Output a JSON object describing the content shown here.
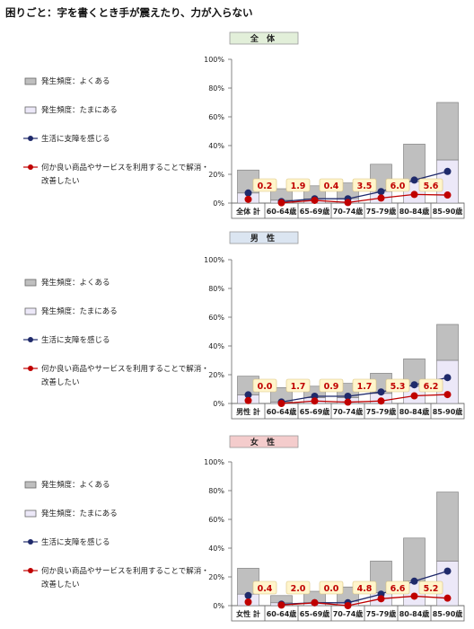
{
  "page_title": "困りごと：字を書くとき手が震えたり、力が入らない",
  "legend": [
    {
      "label": "発生頻度：よくある",
      "kind": "box",
      "color": "#bfbfbf"
    },
    {
      "label": "発生頻度：たまにある",
      "kind": "box",
      "color": "#ece8f8"
    },
    {
      "label": "生活に支障を感じる",
      "kind": "line",
      "color": "#1f2a6b"
    },
    {
      "label": "何か良い商品やサービスを利用することで解消・改善したい",
      "lines": [
        "何か良い商品やサービスを利用することで解消・",
        "改善したい"
      ],
      "kind": "line",
      "color": "#c00000"
    }
  ],
  "colors": {
    "often": "#bfbfbf",
    "sometimes": "#ece8f8",
    "hindrance": "#1f2a6b",
    "want_solution": "#c00000",
    "label_box": "#fff5cc",
    "title_all": "#e2efd9",
    "title_male": "#dbe5f1",
    "title_female": "#f4cccc"
  },
  "chart_data": [
    {
      "type": "bar",
      "title": "全 体",
      "title_color": "#e2efd9",
      "categories": [
        "全体 計",
        "60-64歳",
        "65-69歳",
        "70-74歳",
        "75-79歳",
        "80-84歳",
        "85-90歳"
      ],
      "ylim": [
        0,
        100
      ],
      "yticks": [
        "0%",
        "20%",
        "40%",
        "60%",
        "80%",
        "100%"
      ],
      "series": [
        {
          "name": "発生頻度：よくある",
          "stack": true,
          "values": [
            7,
            2,
            3,
            3,
            8,
            15,
            30
          ]
        },
        {
          "name": "発生頻度：たまにある",
          "stack": true,
          "values": [
            16,
            8,
            9,
            11,
            19,
            26,
            40
          ]
        },
        {
          "name": "生活に支障を感じる",
          "type": "line",
          "values": [
            7,
            1,
            3,
            3,
            8,
            16,
            22
          ]
        },
        {
          "name": "何か良い商品やサービスを利用することで解消・改善したい",
          "type": "line",
          "values": [
            2.6,
            0.2,
            1.9,
            0.4,
            3.5,
            6.0,
            5.6
          ]
        }
      ],
      "data_labels": [
        "",
        "0.2",
        "1.9",
        "0.4",
        "3.5",
        "6.0",
        "5.6"
      ],
      "ylabel": "",
      "xlabel": "",
      "grid": false,
      "legend": "left"
    },
    {
      "type": "bar",
      "title": "男 性",
      "title_color": "#dbe5f1",
      "categories": [
        "男性 計",
        "60-64歳",
        "65-69歳",
        "70-74歳",
        "75-79歳",
        "80-84歳",
        "85-90歳"
      ],
      "ylim": [
        0,
        100
      ],
      "yticks": [
        "0%",
        "20%",
        "40%",
        "60%",
        "80%",
        "100%"
      ],
      "series": [
        {
          "name": "発生頻度：よくある",
          "stack": true,
          "values": [
            6,
            1,
            4,
            4,
            7,
            12,
            30
          ]
        },
        {
          "name": "発生頻度：たまにある",
          "stack": true,
          "values": [
            13,
            10,
            8,
            10,
            14,
            19,
            25
          ]
        },
        {
          "name": "生活に支障を感じる",
          "type": "line",
          "values": [
            6,
            1,
            5,
            5,
            8,
            13,
            18
          ]
        },
        {
          "name": "何か良い商品やサービスを利用することで解消・改善したい",
          "type": "line",
          "values": [
            2,
            0.0,
            1.7,
            0.9,
            1.7,
            5.3,
            6.2
          ]
        }
      ],
      "data_labels": [
        "",
        "0.0",
        "1.7",
        "0.9",
        "1.7",
        "5.3",
        "6.2"
      ],
      "ylabel": "",
      "xlabel": "",
      "grid": false,
      "legend": "left"
    },
    {
      "type": "bar",
      "title": "女 性",
      "title_color": "#f4cccc",
      "categories": [
        "女性 計",
        "60-64歳",
        "65-69歳",
        "70-74歳",
        "75-79歳",
        "80-84歳",
        "85-90歳"
      ],
      "ylim": [
        0,
        100
      ],
      "yticks": [
        "0%",
        "20%",
        "40%",
        "60%",
        "80%",
        "100%"
      ],
      "series": [
        {
          "name": "発生頻度：よくある",
          "stack": true,
          "values": [
            8,
            2,
            2,
            3,
            9,
            17,
            31
          ]
        },
        {
          "name": "発生頻度：たまにある",
          "stack": true,
          "values": [
            18,
            5,
            8,
            10,
            22,
            30,
            48
          ]
        },
        {
          "name": "生活に支障を感じる",
          "type": "line",
          "values": [
            7,
            1,
            2,
            2,
            8,
            17,
            24
          ]
        },
        {
          "name": "何か良い商品やサービスを利用することで解消・改善したい",
          "type": "line",
          "values": [
            2.5,
            0.4,
            2.0,
            0.0,
            4.8,
            6.6,
            5.2
          ]
        }
      ],
      "data_labels": [
        "",
        "0.4",
        "2.0",
        "0.0",
        "4.8",
        "6.6",
        "5.2"
      ],
      "ylabel": "",
      "xlabel": "",
      "grid": false,
      "legend": "left"
    }
  ]
}
